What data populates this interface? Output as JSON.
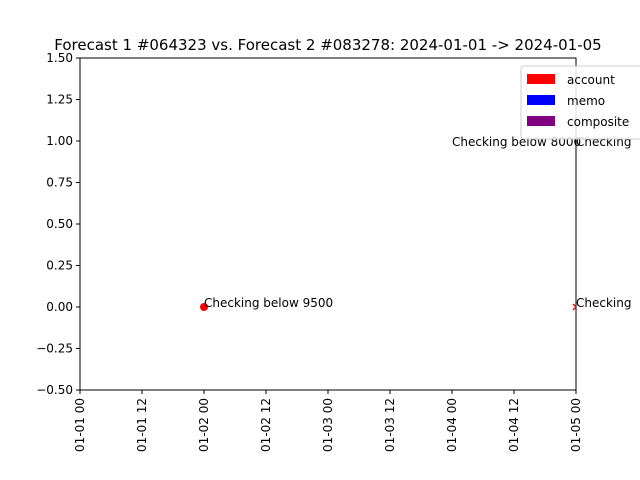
{
  "chart_data": {
    "type": "scatter",
    "title": "Forecast 1 #064323 vs. Forecast 2 #083278: 2024-01-01 -> 2024-01-05",
    "xlabel": "",
    "ylabel": "",
    "xlim": [
      "2024-01-01 00:00",
      "2024-01-05 00:00"
    ],
    "ylim": [
      -0.5,
      1.5
    ],
    "grid": false,
    "legend_position": "top-right",
    "x_ticks": [
      {
        "value": "2024-01-01 00:00",
        "label": "01-01 00"
      },
      {
        "value": "2024-01-01 12:00",
        "label": "01-01 12"
      },
      {
        "value": "2024-01-02 00:00",
        "label": "01-02 00"
      },
      {
        "value": "2024-01-02 12:00",
        "label": "01-02 12"
      },
      {
        "value": "2024-01-03 00:00",
        "label": "01-03 00"
      },
      {
        "value": "2024-01-03 12:00",
        "label": "01-03 12"
      },
      {
        "value": "2024-01-04 00:00",
        "label": "01-04 00"
      },
      {
        "value": "2024-01-04 12:00",
        "label": "01-04 12"
      },
      {
        "value": "2024-01-05 00:00",
        "label": "01-05 00"
      }
    ],
    "y_ticks": [
      {
        "value": 1.5,
        "label": "1.50"
      },
      {
        "value": 1.25,
        "label": "1.25"
      },
      {
        "value": 1.0,
        "label": "1.00"
      },
      {
        "value": 0.75,
        "label": "0.75"
      },
      {
        "value": 0.5,
        "label": "0.50"
      },
      {
        "value": 0.25,
        "label": "0.25"
      },
      {
        "value": 0.0,
        "label": "0.00"
      },
      {
        "value": -0.25,
        "label": "−0.25"
      },
      {
        "value": -0.5,
        "label": "−0.50"
      }
    ],
    "points": [
      {
        "x": "2024-01-02 00:00",
        "y": 0,
        "category": "account",
        "marker": "circle",
        "label": "Checking below 9500"
      },
      {
        "x": "2024-01-05 00:00",
        "y": 0,
        "category": "account",
        "marker": "x",
        "label": "Checking"
      }
    ],
    "annotations": [
      {
        "x": "2024-01-04 00:00",
        "y": 1,
        "text": "Checking below 8000"
      },
      {
        "x": "2024-01-05 00:00",
        "y": 1,
        "text": "Checking"
      }
    ],
    "legend": [
      {
        "label": "account",
        "color": "#ff0000"
      },
      {
        "label": "memo",
        "color": "#0000ff"
      },
      {
        "label": "composite",
        "color": "#800080"
      }
    ]
  }
}
